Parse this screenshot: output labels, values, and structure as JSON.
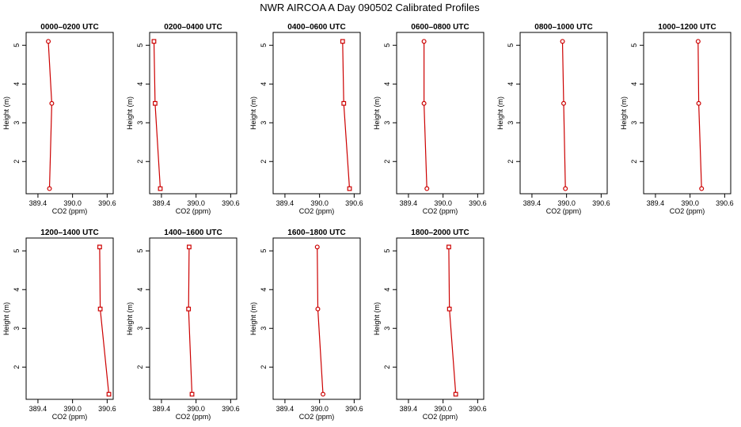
{
  "figure_title": "NWR AIRCOA A  Day 090502  Calibrated Profiles",
  "chart_data": [
    {
      "type": "line",
      "title": "0000–0200 UTC",
      "xlabel": "CO2 (ppm)",
      "ylabel": "Height (m)",
      "xlim": [
        389.25,
        390.65
      ],
      "ylim": [
        1.25,
        5.25
      ],
      "xticks": [
        "389.4",
        "390.0",
        "390.6"
      ],
      "yticks": [
        "2",
        "3",
        "4",
        "5"
      ],
      "series": [
        {
          "x": [
            389.6,
            389.64,
            389.58
          ],
          "y": [
            1.3,
            3.5,
            5.1
          ],
          "marker": "circle",
          "color": "#cc0000"
        }
      ]
    },
    {
      "type": "line",
      "title": "0200–0400 UTC",
      "xlabel": "CO2 (ppm)",
      "ylabel": "Height (m)",
      "xlim": [
        389.25,
        390.65
      ],
      "ylim": [
        1.25,
        5.25
      ],
      "xticks": [
        "389.4",
        "390.0",
        "390.6"
      ],
      "yticks": [
        "2",
        "3",
        "4",
        "5"
      ],
      "series": [
        {
          "x": [
            389.38,
            389.29,
            389.27
          ],
          "y": [
            1.3,
            3.5,
            5.1
          ],
          "marker": "square",
          "color": "#cc0000"
        }
      ]
    },
    {
      "type": "line",
      "title": "0400–0600 UTC",
      "xlabel": "CO2 (ppm)",
      "ylabel": "Height (m)",
      "xlim": [
        389.25,
        390.65
      ],
      "ylim": [
        1.25,
        5.25
      ],
      "xticks": [
        "389.4",
        "390.0",
        "390.6"
      ],
      "yticks": [
        "2",
        "3",
        "4",
        "5"
      ],
      "series": [
        {
          "x": [
            390.52,
            390.42,
            390.4
          ],
          "y": [
            1.3,
            3.5,
            5.1
          ],
          "marker": "square",
          "color": "#cc0000"
        }
      ]
    },
    {
      "type": "line",
      "title": "0600–0800 UTC",
      "xlabel": "CO2 (ppm)",
      "ylabel": "Height (m)",
      "xlim": [
        389.25,
        390.65
      ],
      "ylim": [
        1.25,
        5.25
      ],
      "xticks": [
        "389.4",
        "390.0",
        "390.6"
      ],
      "yticks": [
        "2",
        "3",
        "4",
        "5"
      ],
      "series": [
        {
          "x": [
            389.72,
            389.67,
            389.67
          ],
          "y": [
            1.3,
            3.5,
            5.1
          ],
          "marker": "circle",
          "color": "#cc0000"
        }
      ]
    },
    {
      "type": "line",
      "title": "0800–1000 UTC",
      "xlabel": "CO2 (ppm)",
      "ylabel": "Height (m)",
      "xlim": [
        389.25,
        390.65
      ],
      "ylim": [
        1.25,
        5.25
      ],
      "xticks": [
        "389.4",
        "390.0",
        "390.6"
      ],
      "yticks": [
        "2",
        "3",
        "4",
        "5"
      ],
      "series": [
        {
          "x": [
            389.98,
            389.95,
            389.93
          ],
          "y": [
            1.3,
            3.5,
            5.1
          ],
          "marker": "circle",
          "color": "#cc0000"
        }
      ]
    },
    {
      "type": "line",
      "title": "1000–1200 UTC",
      "xlabel": "CO2 (ppm)",
      "ylabel": "Height (m)",
      "xlim": [
        389.25,
        390.65
      ],
      "ylim": [
        1.25,
        5.25
      ],
      "xticks": [
        "389.4",
        "390.0",
        "390.6"
      ],
      "yticks": [
        "2",
        "3",
        "4",
        "5"
      ],
      "series": [
        {
          "x": [
            390.2,
            390.15,
            390.14
          ],
          "y": [
            1.3,
            3.5,
            5.1
          ],
          "marker": "circle",
          "color": "#cc0000"
        }
      ]
    },
    {
      "type": "line",
      "title": "1200–1400 UTC",
      "xlabel": "CO2 (ppm)",
      "ylabel": "Height (m)",
      "xlim": [
        389.25,
        390.65
      ],
      "ylim": [
        1.25,
        5.25
      ],
      "xticks": [
        "389.4",
        "390.0",
        "390.6"
      ],
      "yticks": [
        "2",
        "3",
        "4",
        "5"
      ],
      "series": [
        {
          "x": [
            390.63,
            390.48,
            390.47
          ],
          "y": [
            1.3,
            3.5,
            5.1
          ],
          "marker": "square",
          "color": "#cc0000"
        }
      ]
    },
    {
      "type": "line",
      "title": "1400–1600 UTC",
      "xlabel": "CO2 (ppm)",
      "ylabel": "Height (m)",
      "xlim": [
        389.25,
        390.65
      ],
      "ylim": [
        1.25,
        5.25
      ],
      "xticks": [
        "389.4",
        "390.0",
        "390.6"
      ],
      "yticks": [
        "2",
        "3",
        "4",
        "5"
      ],
      "series": [
        {
          "x": [
            389.93,
            389.87,
            389.88
          ],
          "y": [
            1.3,
            3.5,
            5.1
          ],
          "marker": "square",
          "color": "#cc0000"
        }
      ]
    },
    {
      "type": "line",
      "title": "1600–1800 UTC",
      "xlabel": "CO2 (ppm)",
      "ylabel": "Height (m)",
      "xlim": [
        389.25,
        390.65
      ],
      "ylim": [
        1.25,
        5.25
      ],
      "xticks": [
        "389.4",
        "390.0",
        "390.6"
      ],
      "yticks": [
        "2",
        "3",
        "4",
        "5"
      ],
      "series": [
        {
          "x": [
            390.06,
            389.97,
            389.96
          ],
          "y": [
            1.3,
            3.5,
            5.1
          ],
          "marker": "circle",
          "color": "#cc0000"
        }
      ]
    },
    {
      "type": "line",
      "title": "1800–2000 UTC",
      "xlabel": "CO2 (ppm)",
      "ylabel": "Height (m)",
      "xlim": [
        389.25,
        390.65
      ],
      "ylim": [
        1.25,
        5.25
      ],
      "xticks": [
        "389.4",
        "390.0",
        "390.6"
      ],
      "yticks": [
        "2",
        "3",
        "4",
        "5"
      ],
      "series": [
        {
          "x": [
            390.22,
            390.11,
            390.1
          ],
          "y": [
            1.3,
            3.5,
            5.1
          ],
          "marker": "square",
          "color": "#cc0000"
        }
      ]
    }
  ]
}
